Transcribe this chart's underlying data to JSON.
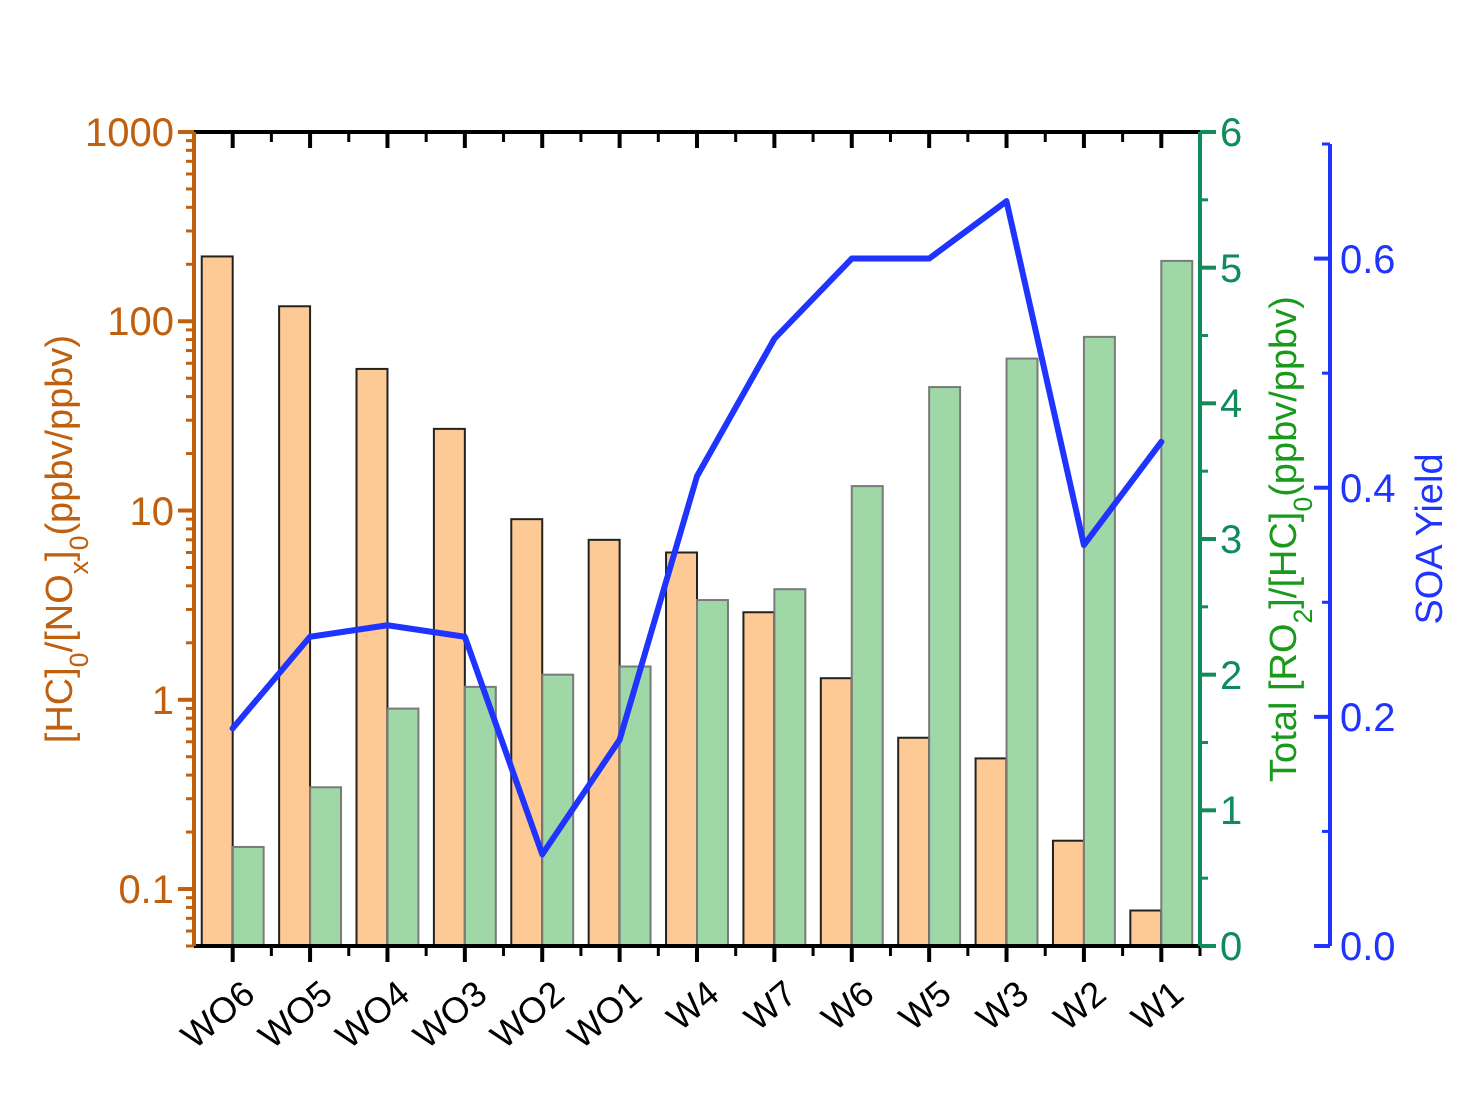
{
  "chart_data": {
    "type": "bar",
    "log": "y",
    "categories": [
      "WO6",
      "WO5",
      "WO4",
      "WO3",
      "WO2",
      "WO1",
      "W4",
      "W7",
      "W6",
      "W5",
      "W3",
      "W2",
      "W1"
    ],
    "series": [
      {
        "color": "#fdc994",
        "values": [
          220,
          120,
          56,
          27,
          9,
          7,
          6,
          2.9,
          1.3,
          0.63,
          0.49,
          0.18,
          0.077
        ]
      },
      {
        "color": "#95d49c",
        "axis": "y2",
        "values": [
          0.73,
          1.17,
          1.75,
          1.91,
          2.0,
          2.06,
          2.55,
          2.63,
          3.39,
          4.12,
          4.33,
          4.49,
          5.05
        ]
      },
      {
        "type": "line",
        "color": "#1f35ff",
        "axis": "y3",
        "values": [
          0.19,
          0.27,
          0.28,
          0.27,
          0.08,
          0.18,
          0.41,
          0.53,
          0.6,
          0.6,
          0.65,
          0.35,
          0.44
        ]
      }
    ],
    "ylabel": "[HC]$_{0}$/[NO$_{x}$]$_{0}$(ppbv/ppbv)",
    "y2label": "Total [RO$_{2}$]/[HC]$_{0}$(ppbv/ppbv)",
    "y3label": "SOA Yield",
    "ylim": [
      0.05,
      1000
    ],
    "yticks": [
      0.1,
      1,
      10,
      100,
      1000
    ],
    "y2lim": [
      0,
      6
    ],
    "y2ticks": [
      0,
      1,
      2,
      3,
      4,
      5,
      6
    ],
    "y3lim": [
      0,
      0.7
    ],
    "y3ticks": [
      {
        "value": 0,
        "label": "0.0"
      },
      0.2,
      0.4,
      0.6
    ]
  }
}
